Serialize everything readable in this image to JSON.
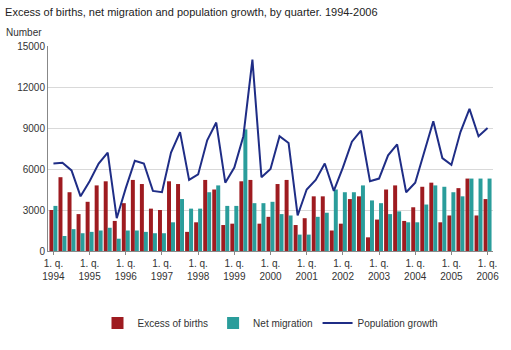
{
  "chart_data": {
    "type": "bar",
    "title": "Excess of births, net migration and population growth, by quarter. 1994-2006",
    "y_label": "Number",
    "categories": [
      "1. q. 1994",
      null,
      null,
      null,
      "1. q. 1995",
      null,
      null,
      null,
      "1. q. 1996",
      null,
      null,
      null,
      "1. q. 1997",
      null,
      null,
      null,
      "1. q. 1998",
      null,
      null,
      null,
      "1. q. 1999",
      null,
      null,
      null,
      "1. q. 2000",
      null,
      null,
      null,
      "1. q. 2001",
      null,
      null,
      null,
      "1. q. 2002",
      null,
      null,
      null,
      "1. q. 2003",
      null,
      null,
      null,
      "1. q. 2004",
      null,
      null,
      null,
      "1. q. 2005",
      null,
      null,
      null,
      "1. q. 2006"
    ],
    "series": [
      {
        "name": "Excess of births",
        "type": "bar",
        "color": "#9e1b20",
        "values": [
          3000,
          5400,
          4300,
          2700,
          3600,
          4800,
          5100,
          2200,
          3500,
          5200,
          4900,
          3100,
          3000,
          5100,
          4900,
          1400,
          2100,
          5200,
          4500,
          1900,
          2000,
          5100,
          5200,
          2000,
          2500,
          4900,
          5200,
          1900,
          2400,
          4000,
          4000,
          1500,
          2000,
          3800,
          4000,
          1000,
          2300,
          4500,
          4800,
          2200,
          3200,
          4700,
          5000,
          2100,
          2600,
          4600,
          5300,
          2600,
          3800
        ]
      },
      {
        "name": "Net migration",
        "type": "bar",
        "color": "#2a9d9b",
        "values": [
          3300,
          1100,
          1600,
          1300,
          1400,
          1500,
          1700,
          900,
          1500,
          1500,
          1400,
          1300,
          1300,
          2100,
          3800,
          3100,
          3100,
          4300,
          4800,
          3300,
          3300,
          8900,
          3500,
          3500,
          3600,
          2700,
          2600,
          1200,
          1200,
          2500,
          2800,
          4500,
          4300,
          4300,
          4800,
          3700,
          3500,
          2700,
          2900,
          2100,
          2100,
          3400,
          4800,
          4700,
          4300,
          4000,
          5300,
          5300,
          5300
        ]
      },
      {
        "name": "Population growth",
        "type": "line",
        "color": "#1f2d86",
        "values": [
          6400,
          6450,
          5900,
          4000,
          5100,
          6400,
          7200,
          2400,
          4600,
          6600,
          6400,
          4400,
          4300,
          7200,
          8700,
          5200,
          5600,
          8100,
          9400,
          5000,
          6100,
          8400,
          14000,
          5400,
          6000,
          8400,
          7900,
          2600,
          4500,
          5200,
          6400,
          4400,
          6100,
          8000,
          8800,
          5100,
          5300,
          7000,
          7800,
          4300,
          5000,
          7200,
          9500,
          6800,
          6300,
          8700,
          10400,
          8400,
          9000
        ]
      }
    ],
    "ylim": [
      0,
      15000
    ],
    "yticks": [
      0,
      3000,
      6000,
      9000,
      12000,
      15000
    ],
    "grid": true,
    "legend": "bottom"
  }
}
